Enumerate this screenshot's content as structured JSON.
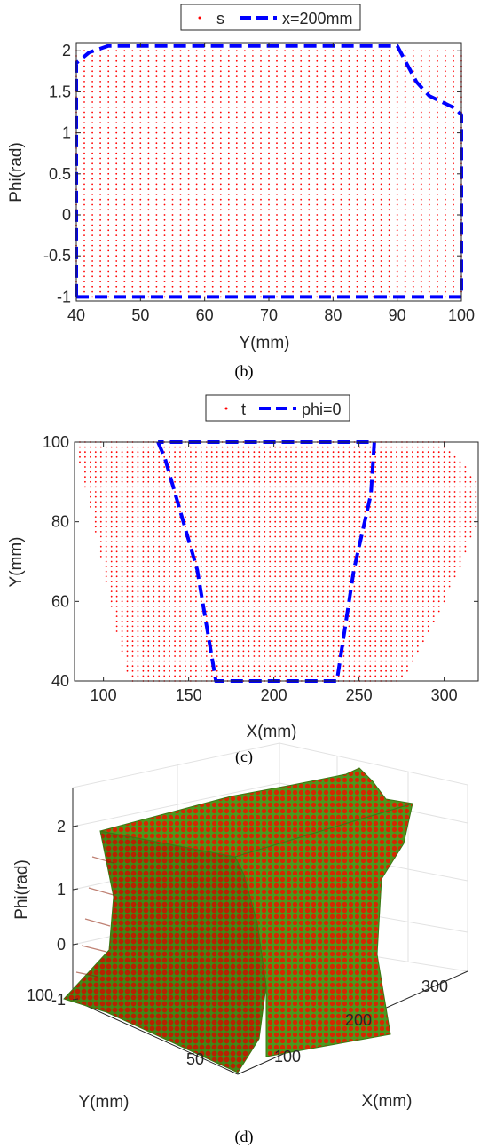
{
  "chart_data": [
    {
      "panel": "b",
      "caption": "(b)",
      "type": "scatter",
      "xlabel": "Y(mm)",
      "ylabel": "Phi(rad)",
      "xlim": [
        40,
        100
      ],
      "ylim": [
        -1.05,
        2.1
      ],
      "xticks": [
        40,
        50,
        60,
        70,
        80,
        90,
        100
      ],
      "yticks": [
        -1,
        -0.5,
        0,
        0.5,
        1,
        1.5,
        2
      ],
      "xtick_labels": [
        "40",
        "50",
        "60",
        "70",
        "80",
        "90",
        "100"
      ],
      "ytick_labels": [
        "-1",
        "-0.5",
        "0",
        "0.5",
        "1",
        "1.5",
        "2"
      ],
      "legend_position": "top-center",
      "series": [
        {
          "name": "s",
          "style": "dots",
          "color": "#ff0000",
          "x_range": [
            40,
            100
          ],
          "x_step": 1.25,
          "y_range": [
            -1,
            2.05
          ],
          "y_step": 0.0625
        },
        {
          "name": "x=200mm",
          "style": "dashed-line",
          "color": "#0000ff",
          "points": [
            [
              40,
              -1
            ],
            [
              100,
              -1
            ],
            [
              100,
              1.22
            ],
            [
              99,
              1.3
            ],
            [
              95,
              1.45
            ],
            [
              93,
              1.62
            ],
            [
              90,
              2.06
            ],
            [
              45,
              2.06
            ],
            [
              42,
              1.98
            ],
            [
              40,
              1.85
            ],
            [
              40,
              -1
            ]
          ]
        }
      ]
    },
    {
      "panel": "c",
      "caption": "(c)",
      "type": "scatter",
      "xlabel": "X(mm)",
      "ylabel": "Y(mm)",
      "xlim": [
        83,
        320
      ],
      "ylim": [
        40,
        100
      ],
      "xticks": [
        100,
        150,
        200,
        250,
        300
      ],
      "yticks": [
        40,
        60,
        80,
        100
      ],
      "xtick_labels": [
        "100",
        "150",
        "200",
        "250",
        "300"
      ],
      "ytick_labels": [
        "40",
        "60",
        "80",
        "100"
      ],
      "legend_position": "top-center",
      "series": [
        {
          "name": "t",
          "style": "dots",
          "color": "#ff0000",
          "x_step": 3.1,
          "y_step": 1.25,
          "envelope": {
            "y": [
              40,
              50,
              60,
              70,
              80,
              90,
              100
            ],
            "x_min": [
              115,
              109,
              104,
              99,
              94,
              88,
              84
            ],
            "x_max": [
              275,
              289,
              300,
              311,
              320,
              320,
              300
            ]
          }
        },
        {
          "name": "phi=0",
          "style": "dashed-line",
          "color": "#0000ff",
          "points": [
            [
              132,
              100
            ],
            [
              136,
              96
            ],
            [
              155,
              68
            ],
            [
              166,
              40
            ],
            [
              237,
              40
            ],
            [
              247,
              68
            ],
            [
              257,
              87
            ],
            [
              259,
              100
            ],
            [
              132,
              100
            ]
          ]
        }
      ]
    },
    {
      "panel": "d",
      "caption": "(d)",
      "type": "scatter3d",
      "xlabel": "X(mm)",
      "ylabel": "Y(mm)",
      "zlabel": "Phi(rad)",
      "xticks": [
        100,
        200,
        300
      ],
      "yticks": [
        50,
        100
      ],
      "zticks": [
        -1,
        0,
        1,
        2
      ],
      "xtick_labels": [
        "100",
        "200",
        "300"
      ],
      "ytick_labels": [
        "50",
        "100"
      ],
      "ztick_labels": [
        "-1",
        "0",
        "1",
        "2"
      ],
      "grid": true,
      "marker_fill": "#cc2200",
      "marker_edge": "#44aa22"
    }
  ]
}
